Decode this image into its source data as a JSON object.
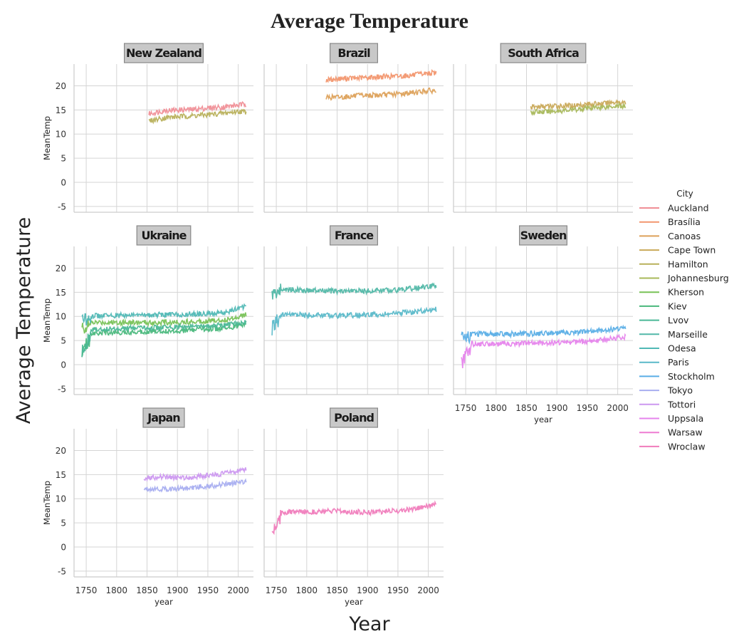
{
  "figure": {
    "suptitle": "Average Temperature",
    "supxlabel": "Year",
    "supylabel": "Average Temperature"
  },
  "legend": {
    "title": "City",
    "items": [
      {
        "name": "Auckland",
        "color": "#f08e96"
      },
      {
        "name": "Brasília",
        "color": "#f2966e"
      },
      {
        "name": "Canoas",
        "color": "#dda15a"
      },
      {
        "name": "Cape Town",
        "color": "#c9a958"
      },
      {
        "name": "Hamilton",
        "color": "#b8b05a"
      },
      {
        "name": "Johannesburg",
        "color": "#a8b85a"
      },
      {
        "name": "Kherson",
        "color": "#78c257"
      },
      {
        "name": "Kiev",
        "color": "#4ab87c"
      },
      {
        "name": "Lvov",
        "color": "#4ab896"
      },
      {
        "name": "Marseille",
        "color": "#52b8a8"
      },
      {
        "name": "Odesa",
        "color": "#50b8b5"
      },
      {
        "name": "Paris",
        "color": "#5ab9c9"
      },
      {
        "name": "Stockholm",
        "color": "#5aaee6"
      },
      {
        "name": "Tokyo",
        "color": "#a8aef0"
      },
      {
        "name": "Tottori",
        "color": "#cc98f0"
      },
      {
        "name": "Uppsala",
        "color": "#e684ec"
      },
      {
        "name": "Warsaw",
        "color": "#ee7cd2"
      },
      {
        "name": "Wroclaw",
        "color": "#f07cbc"
      }
    ]
  },
  "axes": {
    "x_ticks": [
      1750,
      1800,
      1850,
      1900,
      1950,
      2000
    ],
    "y_ticks": [
      -5,
      0,
      5,
      10,
      15,
      20
    ],
    "xlabel": "year",
    "ylabel": "MeanTemp"
  },
  "chart_data": {
    "type": "line",
    "title": "Average Temperature",
    "xlabel": "year",
    "ylabel": "MeanTemp",
    "xlim": [
      1730,
      2025
    ],
    "ylim": [
      -6.2,
      24.5
    ],
    "grid": true,
    "legend_position": "right",
    "panels": [
      {
        "title": "New Zealand",
        "series": [
          {
            "name": "Auckland",
            "x": [
              1853,
              1880,
              1900,
              1925,
              1950,
              1975,
              2000,
              2013
            ],
            "y": [
              14.2,
              14.9,
              15.0,
              15.1,
              15.4,
              15.6,
              16.0,
              16.2
            ]
          },
          {
            "name": "Hamilton",
            "x": [
              1853,
              1880,
              1900,
              1925,
              1950,
              1975,
              2000,
              2013
            ],
            "y": [
              12.7,
              13.4,
              13.6,
              13.8,
              14.0,
              14.3,
              14.7,
              14.6
            ]
          }
        ]
      },
      {
        "title": "Brazil",
        "series": [
          {
            "name": "Brasília",
            "x": [
              1832,
              1860,
              1880,
              1900,
              1925,
              1950,
              1975,
              2000,
              2013
            ],
            "y": [
              21.2,
              21.5,
              21.6,
              21.7,
              21.9,
              22.0,
              22.2,
              22.6,
              22.7
            ]
          },
          {
            "name": "Canoas",
            "x": [
              1832,
              1860,
              1880,
              1900,
              1925,
              1950,
              1975,
              2000,
              2013
            ],
            "y": [
              17.6,
              17.7,
              17.9,
              18.0,
              18.1,
              18.3,
              18.6,
              19.0,
              18.9
            ]
          }
        ]
      },
      {
        "title": "South Africa",
        "series": [
          {
            "name": "Cape Town",
            "x": [
              1857,
              1880,
              1900,
              1925,
              1950,
              1975,
              2000,
              2013
            ],
            "y": [
              15.6,
              15.7,
              15.8,
              15.9,
              16.2,
              16.3,
              16.7,
              16.4
            ]
          },
          {
            "name": "Johannesburg",
            "x": [
              1857,
              1880,
              1900,
              1925,
              1950,
              1975,
              2000,
              2013
            ],
            "y": [
              14.6,
              14.6,
              14.8,
              15.0,
              15.4,
              15.6,
              15.9,
              15.6
            ]
          }
        ]
      },
      {
        "title": "Ukraine",
        "series": [
          {
            "name": "Kherson",
            "x": [
              1743,
              1760,
              1800,
              1850,
              1900,
              1950,
              1980,
              2013
            ],
            "y": [
              7.5,
              8.7,
              8.8,
              8.7,
              8.8,
              9.1,
              9.3,
              10.4
            ]
          },
          {
            "name": "Kiev",
            "x": [
              1743,
              1760,
              1800,
              1850,
              1900,
              1950,
              1980,
              2013
            ],
            "y": [
              2.0,
              6.6,
              6.7,
              6.9,
              7.0,
              7.4,
              7.5,
              8.5
            ]
          },
          {
            "name": "Lvov",
            "x": [
              1743,
              1760,
              1800,
              1850,
              1900,
              1950,
              1980,
              2013
            ],
            "y": [
              3.0,
              7.3,
              7.5,
              7.6,
              7.8,
              8.0,
              8.2,
              9.0
            ]
          },
          {
            "name": "Odesa",
            "x": [
              1743,
              1760,
              1800,
              1850,
              1900,
              1950,
              1980,
              2013
            ],
            "y": [
              9.0,
              10.1,
              10.2,
              10.3,
              10.4,
              10.6,
              10.8,
              12.2
            ]
          }
        ]
      },
      {
        "title": "France",
        "series": [
          {
            "name": "Marseille",
            "x": [
              1743,
              1760,
              1800,
              1850,
              1900,
              1950,
              1980,
              2013
            ],
            "y": [
              14.5,
              15.6,
              15.4,
              15.2,
              15.3,
              15.5,
              15.9,
              16.3
            ]
          },
          {
            "name": "Paris",
            "x": [
              1743,
              1760,
              1800,
              1850,
              1900,
              1950,
              1980,
              2013
            ],
            "y": [
              7.5,
              10.4,
              10.3,
              10.2,
              10.3,
              10.6,
              11.0,
              11.5
            ]
          }
        ]
      },
      {
        "title": "Sweden",
        "series": [
          {
            "name": "Stockholm",
            "x": [
              1743,
              1760,
              1800,
              1850,
              1900,
              1950,
              1980,
              2013
            ],
            "y": [
              5.5,
              6.4,
              6.3,
              6.4,
              6.6,
              6.8,
              7.2,
              7.7
            ]
          },
          {
            "name": "Uppsala",
            "x": [
              1743,
              1760,
              1800,
              1850,
              1900,
              1950,
              1980,
              2013
            ],
            "y": [
              0.0,
              4.3,
              4.3,
              4.4,
              4.6,
              4.8,
              5.2,
              5.8
            ]
          }
        ]
      },
      {
        "title": "Japan",
        "series": [
          {
            "name": "Tokyo",
            "x": [
              1845,
              1870,
              1900,
              1925,
              1950,
              1975,
              2000,
              2013
            ],
            "y": [
              12.1,
              12.0,
              12.1,
              12.3,
              12.6,
              12.9,
              13.4,
              13.7
            ]
          },
          {
            "name": "Tottori",
            "x": [
              1845,
              1870,
              1900,
              1925,
              1950,
              1975,
              2000,
              2013
            ],
            "y": [
              14.3,
              14.5,
              14.4,
              14.5,
              14.8,
              15.2,
              15.8,
              16.0
            ]
          }
        ]
      },
      {
        "title": "Poland",
        "series": [
          {
            "name": "Wroclaw",
            "x": [
              1743,
              1760,
              1800,
              1850,
              1900,
              1950,
              1980,
              2013
            ],
            "y": [
              3.0,
              7.2,
              7.3,
              7.4,
              7.2,
              7.5,
              7.9,
              8.8
            ]
          }
        ]
      }
    ]
  }
}
